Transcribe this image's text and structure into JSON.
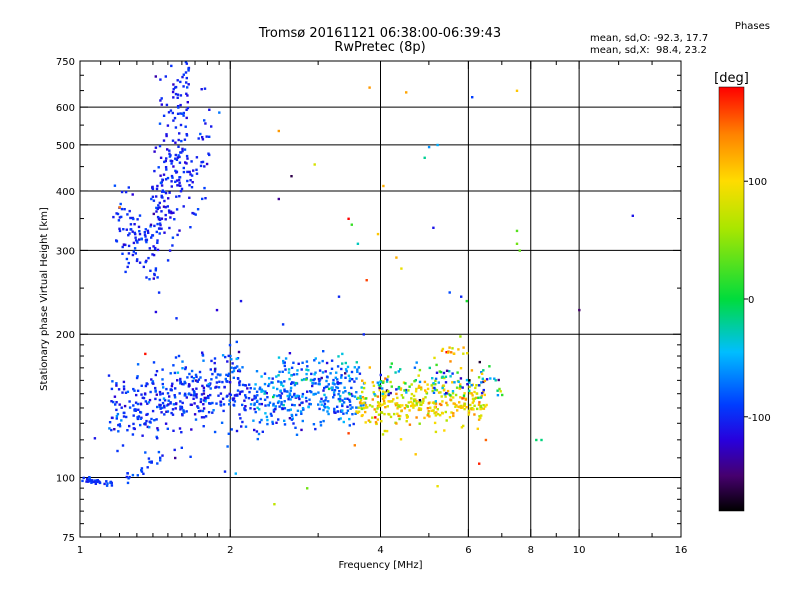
{
  "header": {
    "title_line1": "Tromsø 20161121 06:38:00-06:39:43",
    "title_line2": "RwPretec (8p)"
  },
  "phases_box": {
    "heading": "Phases",
    "line_o": "mean, sd,O: -92.3, 17.7",
    "line_x": "mean, sd,X:  98.4, 23.2"
  },
  "colorbar": {
    "label": "[deg]",
    "ticks": [
      {
        "value": 100,
        "label": "100"
      },
      {
        "value": 0,
        "label": "0"
      },
      {
        "value": -100,
        "label": "-100"
      }
    ],
    "range": [
      -180,
      180
    ]
  },
  "chart_data": {
    "type": "scatter",
    "xlabel": "Frequency [MHz]",
    "ylabel": "Stationary phase Virtual Height [km]",
    "xscale": "log",
    "yscale": "log",
    "xlim": [
      1,
      16
    ],
    "ylim": [
      75,
      750
    ],
    "xticks": [
      {
        "value": 1,
        "label": "1"
      },
      {
        "value": 2,
        "label": "2"
      },
      {
        "value": 4,
        "label": "4"
      },
      {
        "value": 6,
        "label": "6"
      },
      {
        "value": 8,
        "label": "8"
      },
      {
        "value": 10,
        "label": "10"
      },
      {
        "value": 16,
        "label": "16"
      }
    ],
    "xgrid": [
      2,
      4,
      6,
      8,
      10
    ],
    "yticks": [
      {
        "value": 75,
        "label": "75"
      },
      {
        "value": 100,
        "label": "100"
      },
      {
        "value": 200,
        "label": "200"
      },
      {
        "value": 300,
        "label": "300"
      },
      {
        "value": 400,
        "label": "400"
      },
      {
        "value": 500,
        "label": "500"
      },
      {
        "value": 600,
        "label": "600"
      },
      {
        "value": 750,
        "label": "750"
      }
    ],
    "ygrid": [
      100,
      200,
      300,
      400,
      500,
      600
    ],
    "grid": true,
    "color_by": "phase [deg]",
    "clusters": [
      {
        "name": "E-trace",
        "f_from": 1.0,
        "f_to": 1.17,
        "h_from": 99,
        "h_to": 97,
        "spread": 0.008,
        "phase_mean": -95,
        "phase_sd": 6,
        "count": 35
      },
      {
        "name": "E-trace-rise",
        "f_from": 1.22,
        "f_to": 1.45,
        "h_from": 98,
        "h_to": 110,
        "spread": 0.03,
        "phase_mean": -95,
        "phase_sd": 10,
        "count": 22
      },
      {
        "name": "F2-O-lower",
        "f_from": 1.18,
        "f_to": 1.4,
        "h_from": 345,
        "h_to": 300,
        "spread": 0.09,
        "phase_mean": -100,
        "phase_sd": 10,
        "count": 90
      },
      {
        "name": "F2-O-cusp",
        "f_from": 1.4,
        "f_to": 1.66,
        "h_from": 330,
        "h_to": 650,
        "spread": 0.22,
        "phase_mean": -103,
        "phase_sd": 10,
        "count": 230
      },
      {
        "name": "F2-O-cusp-tail",
        "f_from": 1.65,
        "f_to": 1.82,
        "h_from": 380,
        "h_to": 530,
        "spread": 0.12,
        "phase_mean": -100,
        "phase_sd": 12,
        "count": 40
      },
      {
        "name": "Es-band-1",
        "f_from": 1.15,
        "f_to": 2.2,
        "h_from": 138,
        "h_to": 150,
        "spread": 0.08,
        "phase_mean": -98,
        "phase_sd": 14,
        "count": 320
      },
      {
        "name": "Es-band-1b",
        "f_from": 1.4,
        "f_to": 2.1,
        "h_from": 155,
        "h_to": 172,
        "spread": 0.06,
        "phase_mean": -90,
        "phase_sd": 18,
        "count": 90
      },
      {
        "name": "Es-band-2",
        "f_from": 2.2,
        "f_to": 3.7,
        "h_from": 145,
        "h_to": 148,
        "spread": 0.08,
        "phase_mean": -80,
        "phase_sd": 22,
        "count": 300
      },
      {
        "name": "Es-band-2b",
        "f_from": 2.4,
        "f_to": 3.6,
        "h_from": 162,
        "h_to": 168,
        "spread": 0.05,
        "phase_mean": -60,
        "phase_sd": 30,
        "count": 70
      },
      {
        "name": "Es-band-3",
        "f_from": 3.6,
        "f_to": 6.5,
        "h_from": 143,
        "h_to": 145,
        "spread": 0.06,
        "phase_mean": 95,
        "phase_sd": 25,
        "count": 320
      },
      {
        "name": "Es-band-3b",
        "f_from": 3.9,
        "f_to": 7.0,
        "h_from": 158,
        "h_to": 160,
        "spread": 0.04,
        "phase_mean": -40,
        "phase_sd": 70,
        "count": 110
      },
      {
        "name": "Es-band-3c",
        "f_from": 5.3,
        "f_to": 5.9,
        "h_from": 182,
        "h_to": 190,
        "spread": 0.03,
        "phase_mean": 110,
        "phase_sd": 25,
        "count": 16
      }
    ],
    "isolated_points": [
      {
        "x": 1.07,
        "y": 121,
        "phase": -110
      },
      {
        "x": 1.33,
        "y": 103,
        "phase": -90
      },
      {
        "x": 1.35,
        "y": 113,
        "phase": -80
      },
      {
        "x": 1.55,
        "y": 110,
        "phase": -140
      },
      {
        "x": 1.95,
        "y": 103,
        "phase": -100
      },
      {
        "x": 2.05,
        "y": 102,
        "phase": -50
      },
      {
        "x": 2.45,
        "y": 88,
        "phase": 70
      },
      {
        "x": 2.85,
        "y": 95,
        "phase": 40
      },
      {
        "x": 3.45,
        "y": 124,
        "phase": 160
      },
      {
        "x": 3.55,
        "y": 117,
        "phase": 140
      },
      {
        "x": 4.3,
        "y": 130,
        "phase": 125
      },
      {
        "x": 4.7,
        "y": 112,
        "phase": 110
      },
      {
        "x": 5.2,
        "y": 96,
        "phase": 90
      },
      {
        "x": 6.3,
        "y": 107,
        "phase": 170
      },
      {
        "x": 6.5,
        "y": 120,
        "phase": 150
      },
      {
        "x": 8.2,
        "y": 120,
        "phase": -10
      },
      {
        "x": 8.4,
        "y": 120,
        "phase": -15
      },
      {
        "x": 1.35,
        "y": 182,
        "phase": 175
      },
      {
        "x": 1.2,
        "y": 370,
        "phase": 140
      },
      {
        "x": 1.9,
        "y": 585,
        "phase": -70
      },
      {
        "x": 1.88,
        "y": 225,
        "phase": -120
      },
      {
        "x": 2.1,
        "y": 235,
        "phase": -110
      },
      {
        "x": 2.5,
        "y": 535,
        "phase": 130
      },
      {
        "x": 2.5,
        "y": 385,
        "phase": -140
      },
      {
        "x": 2.55,
        "y": 210,
        "phase": -95
      },
      {
        "x": 2.65,
        "y": 430,
        "phase": -160
      },
      {
        "x": 2.95,
        "y": 455,
        "phase": 80
      },
      {
        "x": 3.3,
        "y": 240,
        "phase": -100
      },
      {
        "x": 3.45,
        "y": 350,
        "phase": 180
      },
      {
        "x": 3.5,
        "y": 340,
        "phase": 20
      },
      {
        "x": 3.6,
        "y": 310,
        "phase": -30
      },
      {
        "x": 3.7,
        "y": 200,
        "phase": -100
      },
      {
        "x": 3.75,
        "y": 260,
        "phase": 160
      },
      {
        "x": 3.8,
        "y": 660,
        "phase": 130
      },
      {
        "x": 3.95,
        "y": 325,
        "phase": 110
      },
      {
        "x": 4.05,
        "y": 410,
        "phase": 120
      },
      {
        "x": 4.3,
        "y": 290,
        "phase": 120
      },
      {
        "x": 4.4,
        "y": 275,
        "phase": 90
      },
      {
        "x": 4.5,
        "y": 645,
        "phase": 125
      },
      {
        "x": 4.9,
        "y": 470,
        "phase": -20
      },
      {
        "x": 5.0,
        "y": 495,
        "phase": -60
      },
      {
        "x": 5.1,
        "y": 335,
        "phase": -110
      },
      {
        "x": 5.2,
        "y": 500,
        "phase": -50
      },
      {
        "x": 5.5,
        "y": 245,
        "phase": -85
      },
      {
        "x": 5.8,
        "y": 240,
        "phase": -100
      },
      {
        "x": 6.1,
        "y": 630,
        "phase": -90
      },
      {
        "x": 7.5,
        "y": 330,
        "phase": 30
      },
      {
        "x": 7.5,
        "y": 310,
        "phase": 40
      },
      {
        "x": 7.6,
        "y": 300,
        "phase": 35
      },
      {
        "x": 7.5,
        "y": 650,
        "phase": 110
      },
      {
        "x": 10.0,
        "y": 225,
        "phase": -150
      },
      {
        "x": 12.8,
        "y": 355,
        "phase": -110
      },
      {
        "x": 5.95,
        "y": 235,
        "phase": 10
      }
    ]
  }
}
